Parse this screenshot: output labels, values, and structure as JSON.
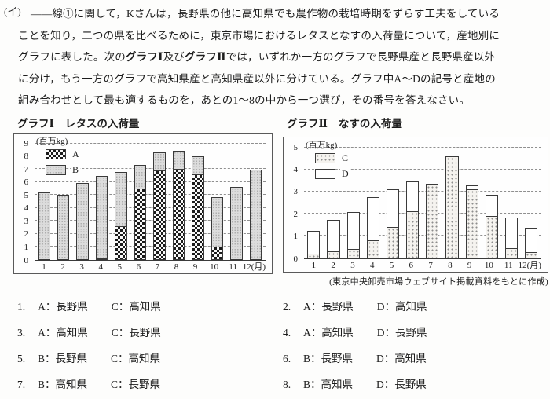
{
  "question": {
    "marker": "(イ)",
    "line1": "——線①に関して，Kさんは，長野県の他に高知県でも農作物の栽培時期をずらす工夫をしている",
    "line2": "ことを知り，二つの県を比べるために，東京市場におけるレタスとなすの入荷量について，産地別に",
    "line3_parts": [
      "グラフに表した。次の",
      "グラフⅠ",
      "及び",
      "グラフⅡ",
      "では，いずれか一方のグラフで長野県産と長野県産以外"
    ],
    "line4": "に分け，もう一方のグラフで高知県産と高知県産以外に分けている。グラフ中A～Dの記号と産地の",
    "line5": "組み合わせとして最も適するものを，あとの1～8の中から一つ選び，その番号を答えなさい。"
  },
  "chart_data": [
    {
      "type": "bar",
      "stacked": true,
      "title_label": "グラフⅠ",
      "title_name": "レタスの入荷量",
      "unit": "(百万kg)",
      "categories": [
        "1",
        "2",
        "3",
        "4",
        "5",
        "6",
        "7",
        "8",
        "9",
        "10",
        "11",
        "12(月)"
      ],
      "xlabel": "月",
      "ylabel": "百万kg",
      "ylim": [
        0,
        9
      ],
      "ytick_step": 1,
      "grid": true,
      "legend_position": "top-left",
      "series": [
        {
          "name": "A",
          "pattern": "checker",
          "values": [
            0,
            0,
            0,
            0.1,
            2.6,
            5.5,
            6.9,
            7.0,
            6.6,
            1.0,
            0,
            0
          ]
        },
        {
          "name": "B",
          "pattern": "dots-gray",
          "values": [
            5.2,
            5.0,
            5.9,
            6.4,
            4.25,
            1.9,
            1.45,
            1.5,
            1.45,
            3.9,
            5.6,
            6.95
          ]
        }
      ],
      "totals": [
        5.2,
        5.0,
        5.9,
        6.5,
        6.85,
        7.4,
        8.35,
        8.5,
        8.05,
        4.9,
        5.6,
        6.95
      ]
    },
    {
      "type": "bar",
      "stacked": true,
      "title_label": "グラフⅡ",
      "title_name": "なすの入荷量",
      "unit": "(百万kg)",
      "categories": [
        "1",
        "2",
        "3",
        "4",
        "5",
        "6",
        "7",
        "8",
        "9",
        "10",
        "11",
        "12(月)"
      ],
      "xlabel": "月",
      "ylabel": "百万kg",
      "ylim": [
        0,
        5
      ],
      "ytick_step": 1,
      "grid": true,
      "legend_position": "top-left",
      "series": [
        {
          "name": "C",
          "pattern": "dots-light",
          "values": [
            0.2,
            0.3,
            0.4,
            0.8,
            1.4,
            2.1,
            3.3,
            4.6,
            3.1,
            1.9,
            0.45,
            0.25
          ]
        },
        {
          "name": "D",
          "pattern": "plain",
          "values": [
            1.05,
            1.45,
            1.7,
            2.0,
            1.75,
            1.4,
            0.1,
            0,
            0.2,
            1.0,
            1.4,
            1.15
          ]
        }
      ],
      "totals": [
        1.25,
        1.75,
        2.1,
        2.8,
        3.15,
        3.5,
        3.4,
        4.6,
        3.3,
        2.9,
        1.85,
        1.4
      ],
      "source": "(東京中央卸売市場ウェブサイト掲載資料をもとに作成)"
    }
  ],
  "options": [
    {
      "num": "1.",
      "a": "A：長野県",
      "b": "C：高知県"
    },
    {
      "num": "2.",
      "a": "A：長野県",
      "b": "D：高知県"
    },
    {
      "num": "3.",
      "a": "A：高知県",
      "b": "C：長野県"
    },
    {
      "num": "4.",
      "a": "A：高知県",
      "b": "D：長野県"
    },
    {
      "num": "5.",
      "a": "B：長野県",
      "b": "C：高知県"
    },
    {
      "num": "6.",
      "a": "B：長野県",
      "b": "D：高知県"
    },
    {
      "num": "7.",
      "a": "B：高知県",
      "b": "C：長野県"
    },
    {
      "num": "8.",
      "a": "B：高知県",
      "b": "D：長野県"
    }
  ]
}
